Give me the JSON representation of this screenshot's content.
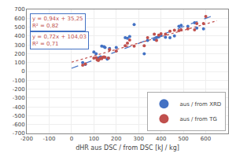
{
  "chart_data": {
    "type": "scatter",
    "xlabel": "dHR aus DSC / from DSC [kJ / kg]",
    "xlim": [
      -200,
      700
    ],
    "ylim": [
      -700,
      700
    ],
    "xticks": [
      -200,
      -100,
      0,
      100,
      200,
      300,
      400,
      500,
      600
    ],
    "yticks": [
      -700,
      -600,
      -500,
      -400,
      -300,
      -200,
      -100,
      0,
      100,
      200,
      300,
      400,
      500,
      600,
      700
    ],
    "grid": true,
    "legend": "lower right",
    "series": [
      {
        "type": "line",
        "line_style": "dashed",
        "color": "#4472C4",
        "x": [
          0,
          650
        ],
        "values": [
          35.25,
          646.25
        ]
      },
      {
        "type": "line",
        "line_style": "dotted",
        "color": "#C0504D",
        "x": [
          0,
          650
        ],
        "values": [
          104.03,
          572.03
        ]
      },
      {
        "name": "aus / from XRD",
        "type": "scatter",
        "marker": "circle",
        "color": "#4472C4",
        "x": [
          50,
          62,
          100,
          110,
          115,
          120,
          125,
          130,
          135,
          145,
          150,
          160,
          165,
          170,
          200,
          240,
          250,
          260,
          280,
          325,
          340,
          370,
          380,
          390,
          400,
          420,
          440,
          460,
          480,
          490,
          520,
          550,
          560,
          590
        ],
        "values": [
          100,
          80,
          220,
          200,
          145,
          150,
          155,
          165,
          285,
          280,
          270,
          140,
          150,
          260,
          270,
          380,
          375,
          395,
          530,
          200,
          350,
          360,
          380,
          390,
          405,
          385,
          380,
          400,
          510,
          520,
          510,
          550,
          490,
          480
        ]
      },
      {
        "name": "aus / from TG",
        "type": "scatter",
        "marker": "circle",
        "color": "#C0504D",
        "x": [
          50,
          62,
          100,
          110,
          115,
          120,
          125,
          130,
          135,
          140,
          145,
          150,
          165,
          170,
          200,
          240,
          250,
          260,
          280,
          325,
          340,
          370,
          380,
          390,
          400,
          420,
          440,
          460,
          480,
          490,
          520,
          550,
          560,
          590,
          600
        ],
        "values": [
          70,
          85,
          150,
          155,
          130,
          125,
          140,
          150,
          145,
          160,
          165,
          160,
          150,
          245,
          230,
          290,
          320,
          355,
          285,
          290,
          380,
          420,
          350,
          410,
          425,
          420,
          455,
          465,
          460,
          470,
          480,
          470,
          540,
          540,
          620
        ]
      }
    ],
    "annotations": [
      {
        "text": "y = 0,94x + 35,25\nR² = 0,82",
        "color": "#C0504D"
      },
      {
        "text": "y = 0,72x + 104,03\nR² = 0,71",
        "color": "#C0504D"
      }
    ]
  }
}
